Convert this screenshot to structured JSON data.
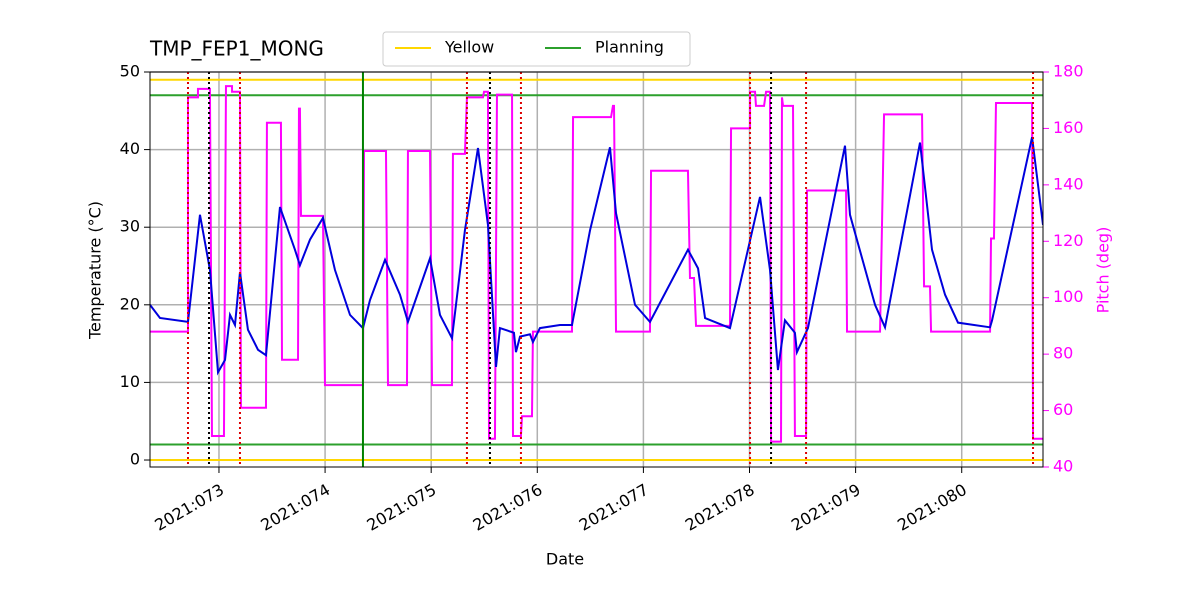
{
  "chart_data": {
    "type": "line",
    "title": "TMP_FEP1_MONG",
    "xlabel": "Date",
    "ylabel": "Temperature (°C)",
    "y2label": "Pitch (deg)",
    "y2color": "#ff00ff",
    "xlim": [
      72.35,
      80.766
    ],
    "xticks": [
      {
        "value": 73,
        "label": "2021:073"
      },
      {
        "value": 74,
        "label": "2021:074"
      },
      {
        "value": 75,
        "label": "2021:075"
      },
      {
        "value": 76,
        "label": "2021:076"
      },
      {
        "value": 77,
        "label": "2021:077"
      },
      {
        "value": 78,
        "label": "2021:078"
      },
      {
        "value": 79,
        "label": "2021:079"
      },
      {
        "value": 80,
        "label": "2021:080"
      }
    ],
    "ylim": [
      -0.9,
      50
    ],
    "yticks": [
      0,
      10,
      20,
      30,
      40,
      50
    ],
    "y2lim": [
      40,
      180
    ],
    "y2ticks": [
      40,
      60,
      80,
      100,
      120,
      140,
      160,
      180
    ],
    "grid": true,
    "legend": "upper center",
    "series": [
      {
        "color": "#0000dd",
        "x": [
          72.35,
          72.444,
          72.708,
          72.821,
          72.915,
          72.991,
          73.057,
          73.104,
          73.151,
          73.198,
          73.273,
          73.368,
          73.443,
          73.575,
          73.716,
          73.763,
          73.858,
          73.98,
          74.093,
          74.235,
          74.357,
          74.423,
          74.565,
          74.706,
          74.781,
          74.989,
          75.083,
          75.196,
          75.318,
          75.441,
          75.535,
          75.611,
          75.648,
          75.78,
          75.799,
          75.837,
          75.931,
          75.959,
          76.025,
          76.214,
          76.327,
          76.497,
          76.685,
          76.742,
          76.921,
          77.062,
          77.42,
          77.515,
          77.581,
          77.816,
          78.099,
          78.193,
          78.268,
          78.334,
          78.428,
          78.447,
          78.551,
          78.9,
          78.947,
          79.183,
          79.277,
          79.607,
          79.72,
          79.843,
          79.965,
          80.267,
          80.286,
          80.663,
          80.766
        ],
        "values": [
          20.0,
          18.3,
          17.8,
          31.6,
          24.5,
          11.3,
          12.9,
          18.7,
          17.4,
          24.2,
          16.8,
          14.2,
          13.5,
          32.6,
          27.1,
          25.1,
          28.4,
          31.2,
          24.5,
          18.7,
          17.0,
          20.6,
          25.8,
          21.3,
          17.8,
          26.0,
          18.7,
          15.7,
          29.6,
          40.2,
          30.3,
          12.0,
          17.0,
          16.4,
          13.9,
          15.9,
          16.2,
          15.2,
          17.0,
          17.4,
          17.4,
          29.6,
          40.3,
          31.8,
          20.0,
          17.8,
          27.1,
          24.7,
          18.3,
          17.0,
          33.9,
          24.5,
          11.6,
          18.0,
          16.4,
          13.9,
          17.0,
          40.5,
          31.6,
          20.0,
          17.1,
          40.9,
          27.1,
          21.3,
          17.7,
          17.1,
          18.0,
          41.6,
          30.3
        ]
      },
      {
        "color": "#ff00ff",
        "axis": "y2",
        "x": [
          72.35,
          72.708,
          72.708,
          72.802,
          72.802,
          72.915,
          72.934,
          73.047,
          73.066,
          73.123,
          73.123,
          73.198,
          73.207,
          73.443,
          73.452,
          73.584,
          73.594,
          73.745,
          73.754,
          73.763,
          73.773,
          73.98,
          73.999,
          74.357,
          74.367,
          74.574,
          74.593,
          74.772,
          74.781,
          74.989,
          75.008,
          75.196,
          75.205,
          75.318,
          75.337,
          75.488,
          75.498,
          75.535,
          75.545,
          75.601,
          75.62,
          75.762,
          75.771,
          75.846,
          75.856,
          75.95,
          75.959,
          76.327,
          76.337,
          76.695,
          76.713,
          76.723,
          76.742,
          77.062,
          77.072,
          77.42,
          77.439,
          77.477,
          77.496,
          77.816,
          77.826,
          78.005,
          78.005,
          78.052,
          78.061,
          78.137,
          78.156,
          78.193,
          78.203,
          78.297,
          78.306,
          78.316,
          78.41,
          78.428,
          78.533,
          78.542,
          78.91,
          78.919,
          79.23,
          79.268,
          79.626,
          79.645,
          79.701,
          79.711,
          80.267,
          80.276,
          80.304,
          80.323,
          80.663,
          80.672,
          80.766
        ],
        "values": [
          88,
          88,
          171,
          171,
          174,
          174,
          51,
          51,
          175,
          175,
          173,
          173,
          61,
          61,
          162,
          162,
          78,
          78,
          167,
          167,
          129,
          129,
          69,
          69,
          152,
          152,
          69,
          69,
          152,
          152,
          69,
          69,
          151,
          151,
          171,
          171,
          173,
          173,
          50,
          50,
          172,
          172,
          51,
          51,
          58,
          58,
          88,
          88,
          164,
          164,
          168,
          168,
          88,
          88,
          145,
          145,
          107,
          107,
          90,
          90,
          160,
          160,
          173,
          173,
          168,
          168,
          173,
          173,
          49,
          49,
          171,
          168,
          168,
          51,
          51,
          138,
          138,
          88,
          88,
          165,
          165,
          104,
          104,
          88,
          88,
          121,
          121,
          169,
          169,
          50,
          50
        ]
      }
    ],
    "limits": [
      {
        "name": "Yellow",
        "color": "#ffd700",
        "values": [
          0,
          49
        ]
      },
      {
        "name": "Planning",
        "color": "#2ca02c",
        "values": [
          2,
          47
        ]
      }
    ],
    "vlines": [
      {
        "color": "#dd0000",
        "style": "dotted",
        "x": [
          72.708,
          73.198,
          75.337,
          75.846,
          78.005,
          78.533,
          80.672
        ]
      },
      {
        "color": "#000000",
        "style": "dotted",
        "x": [
          72.906,
          75.554,
          78.203
        ]
      },
      {
        "color": "#008000",
        "style": "solid",
        "x": [
          74.357
        ]
      }
    ]
  }
}
